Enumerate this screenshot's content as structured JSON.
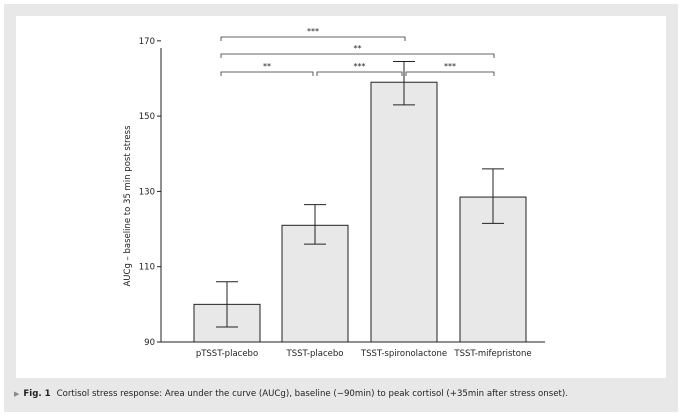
{
  "caption": {
    "figure_label": "Fig. 1",
    "text": "Cortisol stress response: Area under the curve (AUCg), baseline (−90min) to peak cortisol (+35min after stress onset)."
  },
  "colors": {
    "bar_fill": "#e8e8e8",
    "bar_stroke": "#222222",
    "frame_background": "#e8e8e8"
  },
  "chart_data": {
    "type": "bar",
    "title": "",
    "xlabel": "",
    "ylabel": "AUCg – baseline to 35 min post stress",
    "ylim": [
      90,
      175
    ],
    "yticks": [
      90,
      110,
      130,
      150,
      170
    ],
    "categories": [
      "pTSST-placebo",
      "TSST-placebo",
      "TSST-spironolactone",
      "TSST-mifepristone"
    ],
    "values": [
      100,
      121,
      159,
      128.5
    ],
    "error": [
      {
        "low": 94,
        "high": 106
      },
      {
        "low": 116,
        "high": 126.5
      },
      {
        "low": 153,
        "high": 164.5
      },
      {
        "low": 121.5,
        "high": 136
      }
    ],
    "grid": false,
    "significance": [
      {
        "from": 0,
        "to": 2,
        "label": "***",
        "level": 3
      },
      {
        "from": 0,
        "to": 3,
        "label": "**",
        "level": 2
      },
      {
        "from": 0,
        "to": 1,
        "label": "**",
        "level": 1
      },
      {
        "from": 1,
        "to": 2,
        "label": "***",
        "level": 1
      },
      {
        "from": 2,
        "to": 3,
        "label": "***",
        "level": 1
      }
    ]
  }
}
